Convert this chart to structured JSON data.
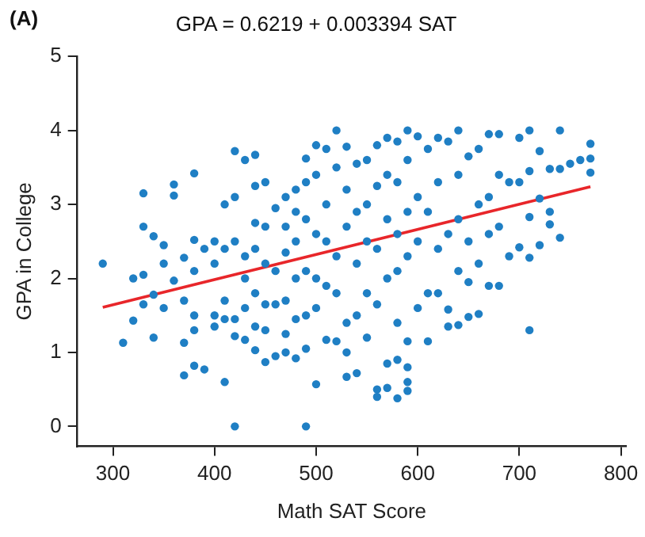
{
  "chart_data": {
    "type": "scatter",
    "title": "GPA = 0.6219 + 0.003394 SAT",
    "xlabel": "Math SAT Score",
    "ylabel": "GPA in College",
    "annotations": [
      "(A)"
    ],
    "xlim": [
      265,
      805
    ],
    "xticks": [
      300,
      400,
      500,
      600,
      700,
      800
    ],
    "ylim": [
      -0.27,
      5
    ],
    "yticks": [
      0,
      1,
      2,
      3,
      4,
      5
    ],
    "grid": false,
    "legend": false,
    "series": [
      {
        "marker": "circle",
        "color": "#1f7fc4",
        "x": [
          290,
          310,
          320,
          320,
          330,
          330,
          330,
          330,
          340,
          340,
          340,
          350,
          350,
          350,
          360,
          360,
          360,
          370,
          370,
          370,
          370,
          380,
          380,
          380,
          380,
          380,
          380,
          390,
          390,
          400,
          400,
          400,
          400,
          410,
          410,
          410,
          410,
          410,
          420,
          420,
          420,
          420,
          420,
          420,
          430,
          430,
          430,
          430,
          430,
          440,
          440,
          440,
          440,
          440,
          440,
          440,
          450,
          450,
          450,
          450,
          450,
          450,
          460,
          460,
          460,
          460,
          470,
          470,
          470,
          470,
          470,
          470,
          480,
          480,
          480,
          480,
          480,
          480,
          490,
          490,
          490,
          490,
          490,
          490,
          490,
          500,
          500,
          500,
          500,
          500,
          500,
          510,
          510,
          510,
          510,
          510,
          520,
          520,
          520,
          520,
          520,
          530,
          530,
          530,
          530,
          530,
          530,
          540,
          540,
          540,
          540,
          540,
          550,
          550,
          550,
          550,
          550,
          560,
          560,
          560,
          560,
          560,
          560,
          570,
          570,
          570,
          570,
          570,
          570,
          580,
          580,
          580,
          580,
          580,
          580,
          580,
          590,
          590,
          590,
          590,
          590,
          590,
          590,
          590,
          600,
          600,
          600,
          600,
          610,
          610,
          610,
          610,
          620,
          620,
          620,
          620,
          630,
          630,
          630,
          630,
          640,
          640,
          640,
          640,
          640,
          650,
          650,
          650,
          650,
          660,
          660,
          660,
          660,
          670,
          670,
          670,
          670,
          680,
          680,
          680,
          680,
          690,
          690,
          700,
          700,
          700,
          710,
          710,
          710,
          710,
          710,
          720,
          720,
          720,
          730,
          730,
          730,
          740,
          740,
          740,
          750,
          760,
          770,
          770,
          770
        ],
        "values": [
          2.2,
          1.13,
          2.0,
          1.43,
          3.15,
          2.7,
          2.05,
          1.65,
          2.57,
          1.2,
          1.78,
          2.45,
          2.2,
          1.6,
          3.27,
          3.12,
          1.97,
          2.28,
          1.13,
          0.69,
          1.7,
          3.42,
          2.52,
          2.1,
          1.5,
          1.3,
          0.82,
          0.77,
          2.4,
          2.5,
          2.2,
          1.5,
          1.35,
          3.0,
          2.4,
          1.7,
          1.45,
          0.6,
          3.72,
          3.1,
          2.5,
          1.45,
          1.22,
          0,
          3.6,
          2.3,
          2.0,
          1.6,
          1.17,
          3.67,
          3.25,
          2.75,
          2.4,
          1.8,
          1.35,
          1.03,
          3.3,
          2.7,
          2.2,
          1.65,
          1.3,
          0.87,
          2.95,
          2.1,
          1.65,
          0.95,
          3.1,
          2.7,
          2.35,
          1.7,
          1.25,
          1.0,
          3.2,
          2.9,
          2.5,
          2.0,
          1.45,
          0.92,
          3.62,
          3.3,
          2.8,
          2.1,
          1.5,
          1.05,
          0,
          3.8,
          3.4,
          2.6,
          2.0,
          1.6,
          0.57,
          3.75,
          3.0,
          2.5,
          1.9,
          1.17,
          4.0,
          3.5,
          2.3,
          1.8,
          1.15,
          3.78,
          3.2,
          2.7,
          1.4,
          1.0,
          0.67,
          3.55,
          2.9,
          2.2,
          1.5,
          0.72,
          3.6,
          3.0,
          2.5,
          1.8,
          1.2,
          3.8,
          3.25,
          2.4,
          1.65,
          0.5,
          0.4,
          3.9,
          3.4,
          2.8,
          2.0,
          0.85,
          0.52,
          3.85,
          3.3,
          2.6,
          2.1,
          1.4,
          0.9,
          0.38,
          4.0,
          3.6,
          2.9,
          2.3,
          1.15,
          0.8,
          0.6,
          0.48,
          3.92,
          3.1,
          2.5,
          1.6,
          3.75,
          2.9,
          1.8,
          1.15,
          3.9,
          3.3,
          2.4,
          1.8,
          3.85,
          2.6,
          1.58,
          1.35,
          4.0,
          3.4,
          2.8,
          2.1,
          1.37,
          3.65,
          2.5,
          1.95,
          1.48,
          3.75,
          3.0,
          2.2,
          1.52,
          3.95,
          3.1,
          2.6,
          1.9,
          3.95,
          3.4,
          2.7,
          1.9,
          3.3,
          2.3,
          3.9,
          3.3,
          2.42,
          4.0,
          3.45,
          2.83,
          2.28,
          1.3,
          3.72,
          3.08,
          2.45,
          3.48,
          2.9,
          2.73,
          4.0,
          3.48,
          2.55,
          3.55,
          3.6,
          3.82,
          3.62,
          3.43
        ]
      },
      {
        "type": "line",
        "marker": "none",
        "color": "#e8262a",
        "x": [
          290,
          770
        ],
        "values": [
          1.61,
          3.24
        ]
      }
    ]
  }
}
